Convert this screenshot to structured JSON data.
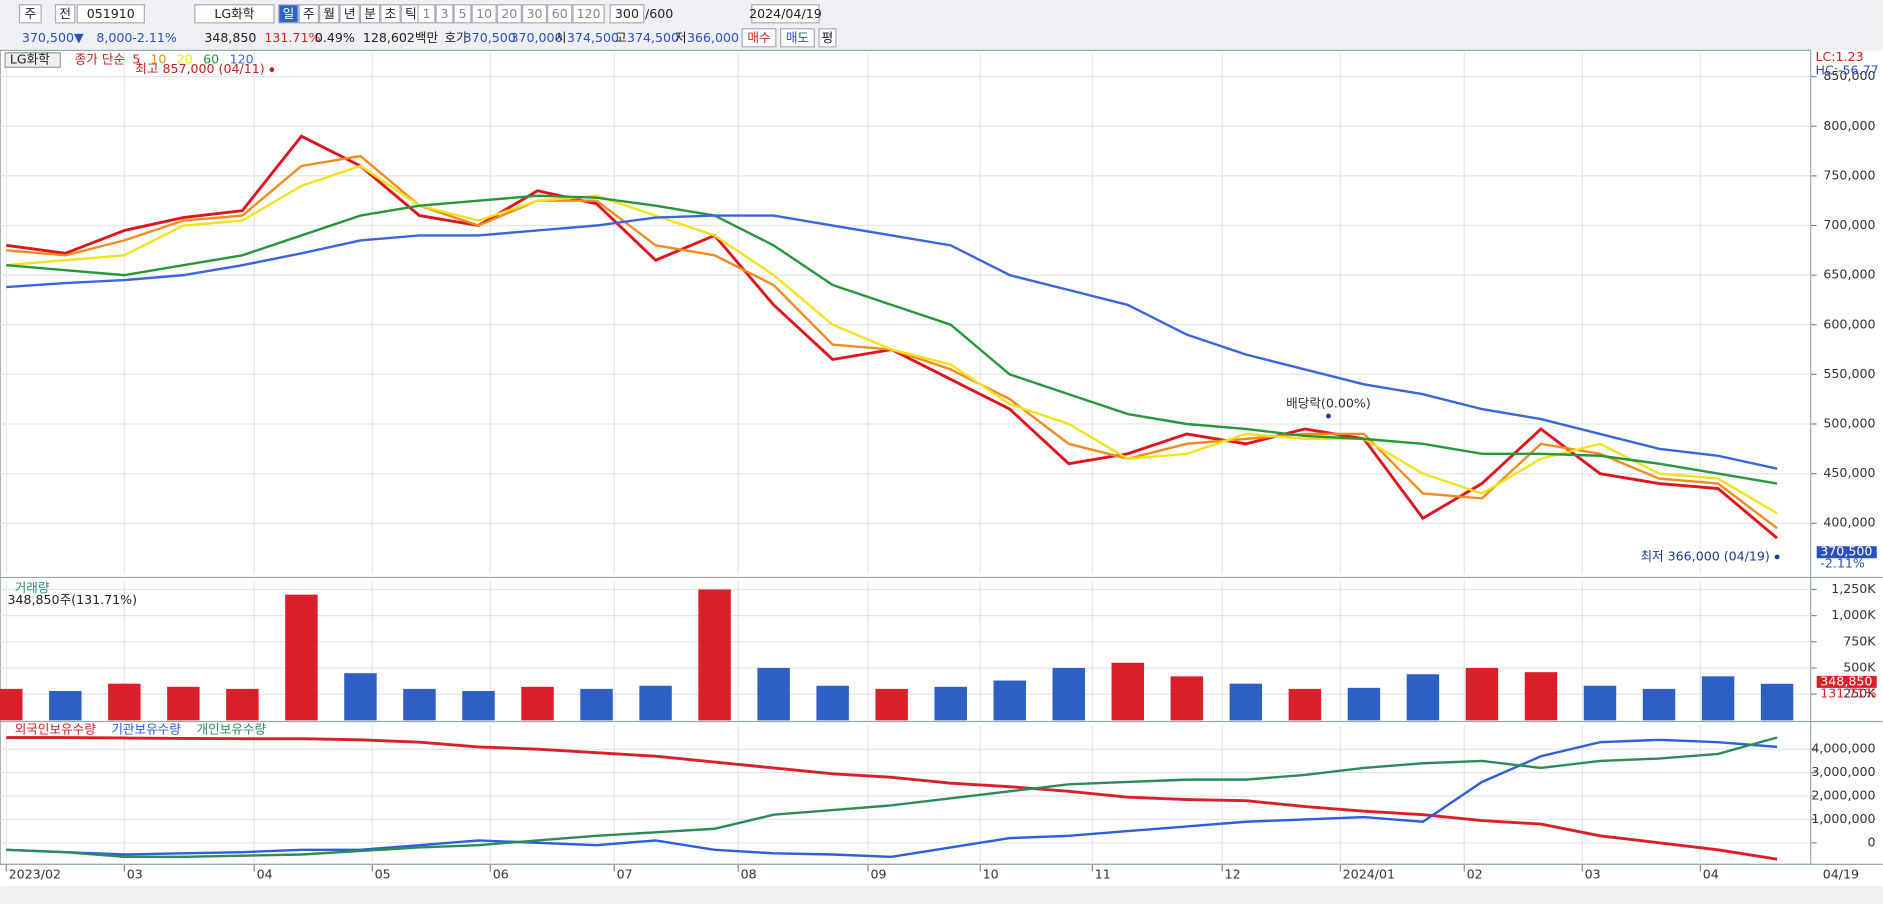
{
  "toolbar": {
    "period_prefix": "주",
    "market": "전",
    "code": "051910",
    "name": "LG화학",
    "periods": [
      "일",
      "주",
      "월",
      "년",
      "분",
      "초",
      "틱"
    ],
    "intervals": [
      "1",
      "3",
      "5",
      "10",
      "20",
      "30",
      "60",
      "120"
    ],
    "count": "300",
    "max_count": "/600",
    "date": "2024/04/19"
  },
  "quote": [
    "370,500▼",
    "8,000",
    "-2.11%",
    "348,850",
    "131.71%",
    "0.49%",
    "128,602백만",
    "호가",
    "370,500",
    "370,000",
    "시",
    "374,500",
    "고",
    "374,500",
    "저",
    "366,000"
  ],
  "buttons": [
    "매수",
    "매도",
    "평"
  ],
  "chart_data": [
    {
      "type": "line",
      "title": "LG화학",
      "legend_title": "종가 단순",
      "xlim": [
        0,
        30
      ],
      "ylim": [
        349000,
        874000
      ],
      "yticks": [
        {
          "value": 400000,
          "label": "400,000"
        },
        {
          "value": 450000,
          "label": "450,000"
        },
        {
          "value": 500000,
          "label": "500,000"
        },
        {
          "value": 550000,
          "label": "550,000"
        },
        {
          "value": 600000,
          "label": "600,000"
        },
        {
          "value": 650000,
          "label": "650,000"
        },
        {
          "value": 700000,
          "label": "700,000"
        },
        {
          "value": 750000,
          "label": "750,000"
        },
        {
          "value": 800000,
          "label": "800,000"
        },
        {
          "value": 850000,
          "label": "850,000"
        }
      ],
      "grid": true,
      "series": [
        {
          "name": "5",
          "color": "#e0141e",
          "values": [
            680000,
            672000,
            695000,
            708000,
            715000,
            790000,
            760000,
            710000,
            700000,
            735000,
            722000,
            665000,
            690000,
            620000,
            565000,
            575000,
            545000,
            515000,
            460000,
            470000,
            490000,
            480000,
            495000,
            485000,
            405000,
            440000,
            495000,
            450000,
            440000,
            435000,
            385000
          ]
        },
        {
          "name": "10",
          "color": "#f08c1e",
          "values": [
            675000,
            670000,
            685000,
            705000,
            710000,
            760000,
            770000,
            720000,
            700000,
            725000,
            725000,
            680000,
            670000,
            640000,
            580000,
            575000,
            555000,
            525000,
            480000,
            465000,
            480000,
            485000,
            490000,
            490000,
            430000,
            425000,
            480000,
            470000,
            445000,
            440000,
            395000
          ]
        },
        {
          "name": "20",
          "color": "#f2e21e",
          "values": [
            660000,
            665000,
            670000,
            700000,
            705000,
            740000,
            760000,
            720000,
            705000,
            725000,
            730000,
            710000,
            690000,
            650000,
            600000,
            575000,
            560000,
            520000,
            500000,
            465000,
            470000,
            490000,
            485000,
            485000,
            450000,
            430000,
            465000,
            480000,
            450000,
            445000,
            410000
          ]
        },
        {
          "name": "60",
          "color": "#27963c",
          "values": [
            660000,
            655000,
            650000,
            660000,
            670000,
            690000,
            710000,
            720000,
            725000,
            730000,
            728000,
            720000,
            710000,
            680000,
            640000,
            620000,
            600000,
            550000,
            530000,
            510000,
            500000,
            495000,
            488000,
            485000,
            480000,
            470000,
            470000,
            468000,
            460000,
            450000,
            440000
          ]
        },
        {
          "name": "120",
          "color": "#3c64dc",
          "values": [
            638000,
            642000,
            645000,
            650000,
            660000,
            672000,
            685000,
            690000,
            690000,
            695000,
            700000,
            708000,
            710000,
            710000,
            700000,
            690000,
            680000,
            650000,
            635000,
            620000,
            590000,
            570000,
            555000,
            540000,
            530000,
            515000,
            505000,
            490000,
            475000,
            468000,
            455000
          ]
        }
      ],
      "annotations": [
        {
          "text": "최고 857,000 (04/11)",
          "x": 4.5,
          "y": 857000
        },
        {
          "text": "최저 366,000 (04/19)",
          "x": 30,
          "y": 366000
        },
        {
          "text": "배당락(0.00%)",
          "x": 22.4,
          "y": 508000
        }
      ],
      "right_labels": [
        "LC:1.23",
        "HC:-56.77"
      ],
      "last_labels": [
        "370,500",
        "-2.11%"
      ]
    },
    {
      "type": "bar",
      "title": "거래량",
      "subtitle": "348,850주(131.71%)",
      "xlim": [
        0,
        30
      ],
      "ylim": [
        0,
        1330000
      ],
      "yticks": [
        {
          "value": 250000,
          "label": "250K"
        },
        {
          "value": 500000,
          "label": "500K"
        },
        {
          "value": 750000,
          "label": "750K"
        },
        {
          "value": 1000000,
          "label": "1,000K"
        },
        {
          "value": 1250000,
          "label": "1,250K"
        }
      ],
      "up_color": "#d9202a",
      "down_color": "#2d5fc4",
      "values": [
        300000,
        280000,
        350000,
        320000,
        300000,
        1200000,
        450000,
        300000,
        280000,
        320000,
        300000,
        330000,
        1250000,
        500000,
        330000,
        300000,
        320000,
        380000,
        500000,
        550000,
        420000,
        350000,
        300000,
        310000,
        440000,
        500000,
        460000,
        330000,
        300000,
        420000,
        348850
      ],
      "last_labels": [
        "348,850",
        "131.71%"
      ]
    },
    {
      "type": "line",
      "xlim": [
        0,
        30
      ],
      "ylim": [
        -820000,
        5030000
      ],
      "yticks": [
        0,
        {
          "value": 1000000,
          "label": "1,000,000"
        },
        {
          "value": 2000000,
          "label": "2,000,000"
        },
        {
          "value": 3000000,
          "label": "3,000,000"
        },
        {
          "value": 4000000,
          "label": "4,000,000"
        }
      ],
      "xticks": [
        {
          "value": 0,
          "label": "2023/02"
        },
        {
          "value": 2.0,
          "label": "03"
        },
        {
          "value": 4.2,
          "label": "04"
        },
        {
          "value": 6.2,
          "label": "05"
        },
        {
          "value": 8.2,
          "label": "06"
        },
        {
          "value": 10.3,
          "label": "07"
        },
        {
          "value": 12.4,
          "label": "08"
        },
        {
          "value": 14.6,
          "label": "09"
        },
        {
          "value": 16.5,
          "label": "10"
        },
        {
          "value": 18.4,
          "label": "11"
        },
        {
          "value": 20.6,
          "label": "12"
        },
        {
          "value": 22.6,
          "label": "2024/01"
        },
        {
          "value": 24.7,
          "label": "02"
        },
        {
          "value": 26.7,
          "label": "03"
        },
        {
          "value": 28.7,
          "label": "04"
        }
      ],
      "end_label": "04/19",
      "series": [
        {
          "name": "외국인보유수량",
          "color": "#d9202a",
          "values": [
            4500000,
            4500000,
            4480000,
            4460000,
            4450000,
            4450000,
            4400000,
            4300000,
            4100000,
            4000000,
            3850000,
            3700000,
            3450000,
            3200000,
            2950000,
            2800000,
            2550000,
            2400000,
            2200000,
            1950000,
            1850000,
            1800000,
            1550000,
            1350000,
            1200000,
            950000,
            800000,
            300000,
            0,
            -300000,
            -700000
          ]
        },
        {
          "name": "기관보유수량",
          "color": "#2c5fd8",
          "values": [
            -300000,
            -400000,
            -500000,
            -450000,
            -400000,
            -300000,
            -300000,
            -100000,
            100000,
            0,
            -100000,
            100000,
            -300000,
            -450000,
            -500000,
            -600000,
            -200000,
            200000,
            300000,
            500000,
            700000,
            900000,
            1000000,
            1100000,
            900000,
            2600000,
            3700000,
            4300000,
            4400000,
            4300000,
            4100000
          ]
        },
        {
          "name": "개인보유수량",
          "color": "#2e8b57",
          "values": [
            -300000,
            -400000,
            -600000,
            -600000,
            -550000,
            -500000,
            -350000,
            -200000,
            -100000,
            100000,
            300000,
            450000,
            600000,
            1200000,
            1400000,
            1600000,
            1900000,
            2200000,
            2500000,
            2600000,
            2700000,
            2700000,
            2900000,
            3200000,
            3400000,
            3500000,
            3200000,
            3500000,
            3600000,
            3800000,
            4500000
          ]
        }
      ]
    }
  ]
}
